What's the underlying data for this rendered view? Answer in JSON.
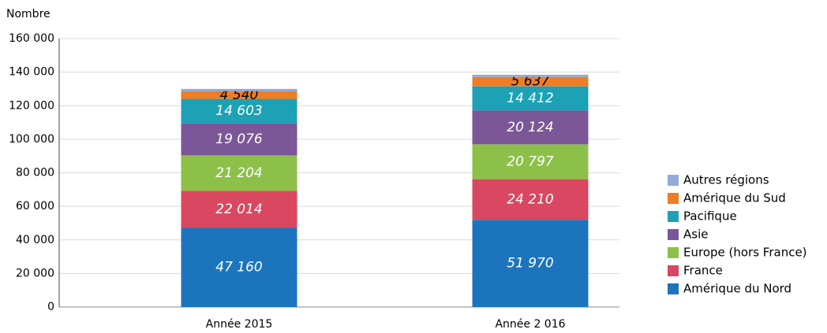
{
  "chart_data": {
    "type": "stacked_bar",
    "y_label": "Nombre",
    "categories": [
      "Année 2015",
      "Année 2 016"
    ],
    "series": [
      {
        "name": "Amérique du Nord",
        "color": "#1c75bc",
        "label_color": "#ffffff",
        "values": [
          47160,
          51970
        ],
        "value_labels": [
          "47 160",
          "51 970"
        ]
      },
      {
        "name": "France",
        "color": "#d94760",
        "label_color": "#ffffff",
        "values": [
          22014,
          24210
        ],
        "value_labels": [
          "22 014",
          "24 210"
        ]
      },
      {
        "name": "Europe (hors France)",
        "color": "#8dc049",
        "label_color": "#ffffff",
        "values": [
          21204,
          20797
        ],
        "value_labels": [
          "21 204",
          "20 797"
        ]
      },
      {
        "name": "Asie",
        "color": "#7b5797",
        "label_color": "#ffffff",
        "values": [
          19076,
          20124
        ],
        "value_labels": [
          "19 076",
          "20 124"
        ]
      },
      {
        "name": "Pacifique",
        "color": "#1ca1b5",
        "label_color": "#ffffff",
        "values": [
          14603,
          14412
        ],
        "value_labels": [
          "14 603",
          "14 412"
        ]
      },
      {
        "name": "Amérique du Sud",
        "color": "#ef7d24",
        "label_color": "#000000",
        "values": [
          4540,
          5637
        ],
        "value_labels": [
          "4 540",
          "5 637"
        ]
      },
      {
        "name": "Autres régions",
        "color": "#94aad7",
        "values": [
          1400,
          1300
        ]
      }
    ],
    "ylim": [
      0,
      160000
    ],
    "yticks": [
      0,
      {
        "value": 20000,
        "label": "20 000"
      },
      {
        "value": 40000,
        "label": "40 000"
      },
      {
        "value": 60000,
        "label": "60 000"
      },
      {
        "value": 80000,
        "label": "80 000"
      },
      {
        "value": 100000,
        "label": "100 000"
      },
      {
        "value": 120000,
        "label": "120 000"
      },
      {
        "value": 140000,
        "label": "140 000"
      },
      {
        "value": 160000,
        "label": "160 000"
      }
    ],
    "grid": true,
    "legend": "right"
  }
}
